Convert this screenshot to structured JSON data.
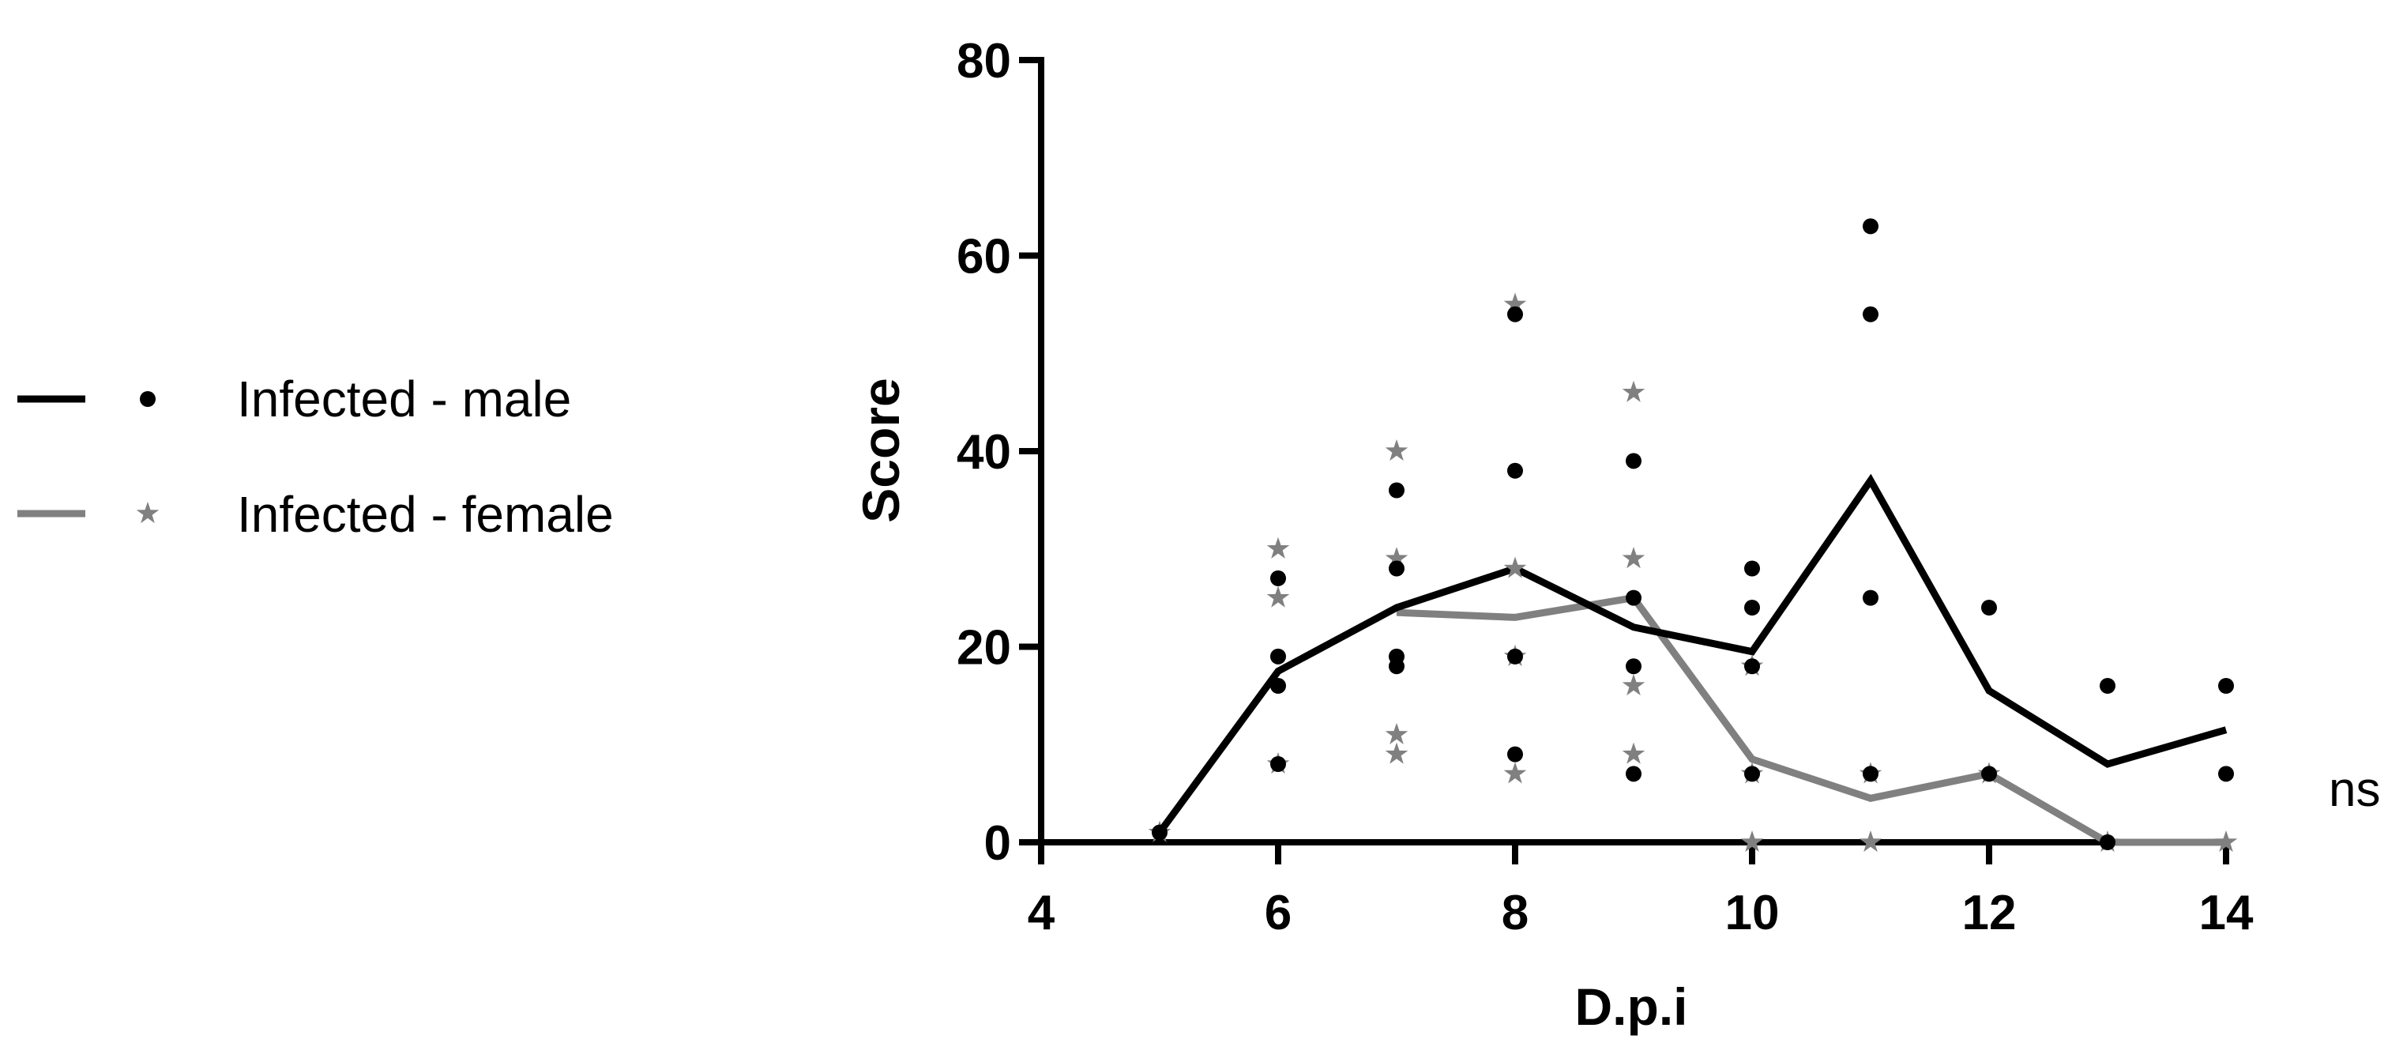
{
  "chart_data": {
    "type": "scatter",
    "title": "",
    "xlabel": "D.p.i",
    "ylabel": "Score",
    "xlim": [
      4,
      14
    ],
    "ylim": [
      0,
      80
    ],
    "x_ticks": [
      "4",
      "6",
      "8",
      "10",
      "12",
      "14"
    ],
    "y_ticks": [
      "0",
      "20",
      "40",
      "60",
      "80"
    ],
    "legend_position": "left",
    "grid": false,
    "annotation": "ns",
    "series": [
      {
        "name": "Infected - male",
        "color": "#000000",
        "marker": "circle",
        "line": {
          "x": [
            5,
            6,
            7,
            8,
            9,
            10,
            11,
            12,
            13,
            14
          ],
          "y": [
            1,
            17.5,
            24,
            28,
            22,
            19.5,
            37,
            15.5,
            8,
            11.5
          ]
        },
        "points": [
          {
            "x": 5,
            "y": 1
          },
          {
            "x": 6,
            "y": 27
          },
          {
            "x": 6,
            "y": 19
          },
          {
            "x": 6,
            "y": 16
          },
          {
            "x": 6,
            "y": 8
          },
          {
            "x": 7,
            "y": 36
          },
          {
            "x": 7,
            "y": 28
          },
          {
            "x": 7,
            "y": 19
          },
          {
            "x": 7,
            "y": 18
          },
          {
            "x": 8,
            "y": 54
          },
          {
            "x": 8,
            "y": 38
          },
          {
            "x": 8,
            "y": 19
          },
          {
            "x": 8,
            "y": 9
          },
          {
            "x": 9,
            "y": 39
          },
          {
            "x": 9,
            "y": 25
          },
          {
            "x": 9,
            "y": 18
          },
          {
            "x": 9,
            "y": 7
          },
          {
            "x": 10,
            "y": 28
          },
          {
            "x": 10,
            "y": 24
          },
          {
            "x": 10,
            "y": 18
          },
          {
            "x": 10,
            "y": 7
          },
          {
            "x": 11,
            "y": 63
          },
          {
            "x": 11,
            "y": 54
          },
          {
            "x": 11,
            "y": 25
          },
          {
            "x": 11,
            "y": 7
          },
          {
            "x": 12,
            "y": 24
          },
          {
            "x": 12,
            "y": 7
          },
          {
            "x": 13,
            "y": 16
          },
          {
            "x": 13,
            "y": 0
          },
          {
            "x": 14,
            "y": 16
          },
          {
            "x": 14,
            "y": 7
          }
        ]
      },
      {
        "name": "Infected - female",
        "color": "#808080",
        "marker": "star",
        "line": {
          "x": [
            7,
            8,
            9,
            10,
            11,
            12,
            13,
            14
          ],
          "y": [
            23.5,
            23,
            25,
            8.5,
            4.5,
            7,
            0,
            0
          ]
        },
        "points": [
          {
            "x": 5,
            "y": 1
          },
          {
            "x": 6,
            "y": 30
          },
          {
            "x": 6,
            "y": 25
          },
          {
            "x": 6,
            "y": 8
          },
          {
            "x": 7,
            "y": 40
          },
          {
            "x": 7,
            "y": 29
          },
          {
            "x": 7,
            "y": 11
          },
          {
            "x": 7,
            "y": 9
          },
          {
            "x": 8,
            "y": 55
          },
          {
            "x": 8,
            "y": 28
          },
          {
            "x": 8,
            "y": 19
          },
          {
            "x": 8,
            "y": 7
          },
          {
            "x": 9,
            "y": 46
          },
          {
            "x": 9,
            "y": 29
          },
          {
            "x": 9,
            "y": 16
          },
          {
            "x": 9,
            "y": 9
          },
          {
            "x": 10,
            "y": 18
          },
          {
            "x": 10,
            "y": 7
          },
          {
            "x": 10,
            "y": 0
          },
          {
            "x": 11,
            "y": 7
          },
          {
            "x": 11,
            "y": 0
          },
          {
            "x": 12,
            "y": 7
          },
          {
            "x": 13,
            "y": 0
          },
          {
            "x": 14,
            "y": 0
          }
        ]
      }
    ]
  }
}
